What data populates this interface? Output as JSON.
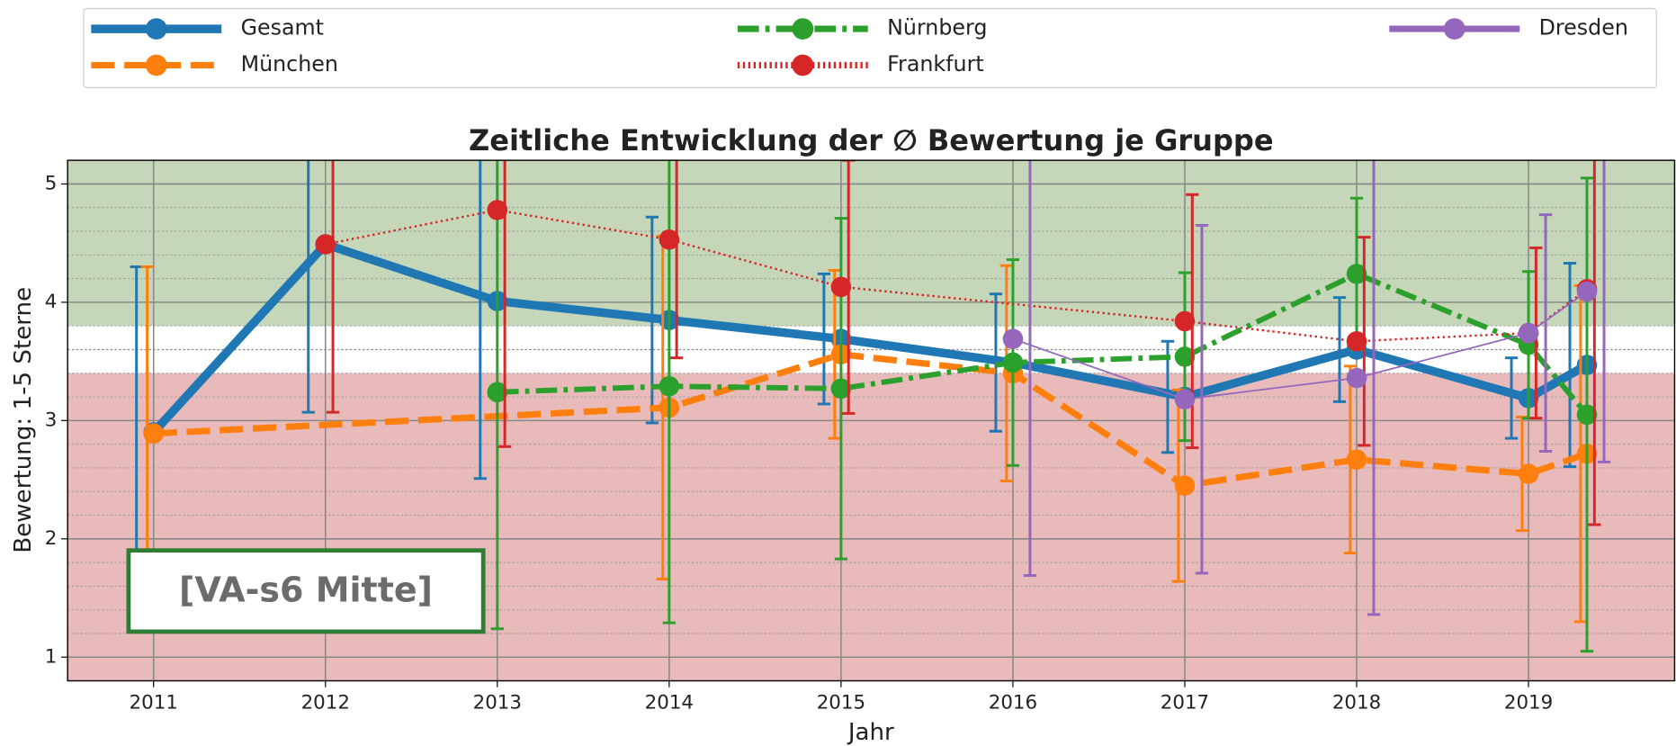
{
  "chart_data": {
    "type": "line",
    "title": "Zeitliche Entwicklung der ∅ Bewertung je Gruppe",
    "xlabel": "Jahr",
    "ylabel": "Bewertung: 1-5 Sterne",
    "annotation": "[VA-s6 Mitte]",
    "xlim": [
      2010.5,
      2019.85
    ],
    "ylim": [
      0.8,
      5.2
    ],
    "xticks": [
      2011,
      2012,
      2013,
      2014,
      2015,
      2016,
      2017,
      2018,
      2019
    ],
    "yticks": [
      1,
      2,
      3,
      4,
      5
    ],
    "minor_yticks": [
      1.2,
      1.4,
      1.6,
      1.8,
      2.2,
      2.4,
      2.6,
      2.8,
      3.2,
      3.4,
      3.6,
      3.8,
      4.2,
      4.4,
      4.6,
      4.8
    ],
    "grid": true,
    "legend": "upper center outside",
    "bands": [
      {
        "range": [
          3.8,
          5.2
        ],
        "color": "#c6d7b9"
      },
      {
        "range": [
          0.8,
          3.4
        ],
        "color": "#e9baba"
      }
    ],
    "hlines": [
      3.6
    ],
    "series": [
      {
        "name": "Gesamt",
        "color": "#1f77b4",
        "linestyle": "solid",
        "linewidth": 8,
        "x": [
          2011,
          2012,
          2013,
          2014,
          2015,
          2016,
          2017,
          2018,
          2019,
          2019.34
        ],
        "values": [
          2.9,
          4.49,
          4.01,
          3.85,
          3.69,
          3.49,
          3.2,
          3.6,
          3.19,
          3.47
        ],
        "errors": [
          1.4,
          1.42,
          1.5,
          0.87,
          0.55,
          0.58,
          0.47,
          0.44,
          0.34,
          0.86
        ]
      },
      {
        "name": "München",
        "color": "#ff7f0e",
        "linestyle": "dashed",
        "linewidth": 6,
        "x": [
          2011,
          2014,
          2015,
          2016,
          2017,
          2018,
          2019,
          2019.34
        ],
        "values": [
          2.89,
          3.11,
          3.56,
          3.4,
          2.45,
          2.67,
          2.55,
          2.72
        ],
        "errors": [
          1.41,
          1.45,
          0.71,
          0.91,
          0.81,
          0.79,
          0.48,
          1.42
        ]
      },
      {
        "name": "Nürnberg",
        "color": "#2ca02c",
        "linestyle": "dashdot",
        "linewidth": 5,
        "x": [
          2013,
          2014,
          2015,
          2016,
          2017,
          2018,
          2019,
          2019.34
        ],
        "values": [
          3.24,
          3.29,
          3.27,
          3.49,
          3.54,
          4.24,
          3.64,
          3.05
        ],
        "errors": [
          2.0,
          2.0,
          1.44,
          0.87,
          0.71,
          0.64,
          0.62,
          2.0
        ]
      },
      {
        "name": "Frankfurt",
        "color": "#d62728",
        "linestyle": "dotted",
        "linewidth": 2,
        "x": [
          2012,
          2013,
          2014,
          2015,
          2017,
          2018,
          2019,
          2019.34
        ],
        "values": [
          4.49,
          4.78,
          4.53,
          4.13,
          3.84,
          3.67,
          3.74,
          4.11
        ],
        "errors": [
          1.42,
          2.0,
          1.0,
          1.07,
          1.07,
          0.88,
          0.72,
          1.99
        ]
      },
      {
        "name": "Dresden",
        "color": "#9467bd",
        "linestyle": "solid",
        "linewidth": 1.5,
        "x": [
          2016,
          2017,
          2018,
          2019,
          2019.34
        ],
        "values": [
          3.69,
          3.18,
          3.36,
          3.74,
          4.09
        ],
        "errors": [
          2.0,
          1.47,
          2.0,
          1.0,
          1.44
        ]
      }
    ]
  }
}
